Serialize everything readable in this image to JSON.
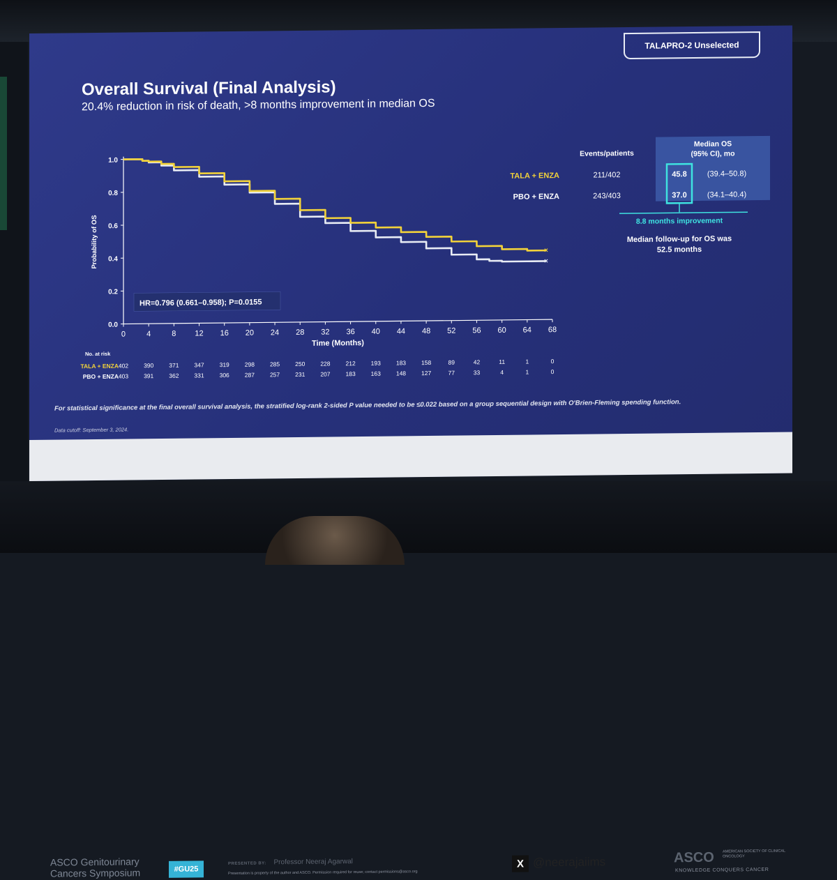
{
  "slide": {
    "tag": "TALAPRO-2 Unselected",
    "title": "Overall Survival (Final Analysis)",
    "subtitle": "20.4% reduction in risk of death, >8 months improvement in median OS",
    "footnote": "For statistical significance at the final overall survival analysis, the stratified log-rank 2-sided P value needed to be ≤0.022 based on a group sequential design with O'Brien-Fleming spending function.",
    "data_cutoff": "Data cutoff: September 3, 2024."
  },
  "chart_data": {
    "type": "line",
    "title": "",
    "xlabel": "Time (Months)",
    "ylabel": "Probability of OS",
    "xlim": [
      0,
      68
    ],
    "ylim": [
      0,
      1.0
    ],
    "x_ticks": [
      0,
      4,
      8,
      12,
      16,
      20,
      24,
      28,
      32,
      36,
      40,
      44,
      48,
      52,
      56,
      60,
      64,
      68
    ],
    "y_ticks": [
      "0.0",
      "0.2",
      "0.4",
      "0.6",
      "0.8",
      "1.0"
    ],
    "grid": false,
    "hr_label": "HR=0.796 (0.661–0.958); P=0.0155",
    "series": [
      {
        "name": "TALA + ENZA",
        "color": "#f2d23a",
        "x": [
          0,
          3,
          4,
          6,
          8,
          12,
          16,
          20,
          24,
          28,
          32,
          36,
          40,
          44,
          48,
          52,
          56,
          60,
          64,
          67
        ],
        "y": [
          1.0,
          0.99,
          0.985,
          0.97,
          0.95,
          0.91,
          0.86,
          0.8,
          0.75,
          0.68,
          0.63,
          0.6,
          0.57,
          0.54,
          0.51,
          0.48,
          0.45,
          0.43,
          0.42,
          0.42
        ]
      },
      {
        "name": "PBO + ENZA",
        "color": "#e8ecf4",
        "x": [
          0,
          3,
          4,
          6,
          8,
          12,
          16,
          20,
          24,
          28,
          32,
          36,
          40,
          44,
          48,
          52,
          56,
          58,
          60,
          64,
          67
        ],
        "y": [
          1.0,
          0.99,
          0.98,
          0.96,
          0.93,
          0.89,
          0.84,
          0.79,
          0.72,
          0.64,
          0.6,
          0.55,
          0.51,
          0.48,
          0.44,
          0.4,
          0.37,
          0.36,
          0.355,
          0.355,
          0.355
        ]
      }
    ],
    "risk_table": {
      "header": "No. at risk",
      "rows": [
        {
          "label": "TALA + ENZA",
          "values": [
            "402",
            "390",
            "371",
            "347",
            "319",
            "298",
            "285",
            "250",
            "228",
            "212",
            "193",
            "183",
            "158",
            "89",
            "42",
            "11",
            "1",
            "0"
          ]
        },
        {
          "label": "PBO + ENZA",
          "values": [
            "403",
            "391",
            "362",
            "331",
            "306",
            "287",
            "257",
            "231",
            "207",
            "183",
            "163",
            "148",
            "127",
            "77",
            "33",
            "4",
            "1",
            "0"
          ]
        }
      ]
    },
    "summary_table": {
      "col_events": "Events/patients",
      "col_median_line1": "Median OS",
      "col_median_line2": "(95% CI), mo",
      "rows": [
        {
          "label": "TALA + ENZA",
          "events": "211/402",
          "median": "45.8",
          "ci": "(39.4–50.8)"
        },
        {
          "label": "PBO + ENZA",
          "events": "243/403",
          "median": "37.0",
          "ci": "(34.1–40.4)"
        }
      ],
      "improvement": "8.8 months improvement",
      "followup_line1": "Median follow-up for OS was",
      "followup_line2": "52.5 months"
    }
  },
  "footer": {
    "meeting_line1": "ASCO Genitourinary",
    "meeting_line2": "Cancers Symposium",
    "hashtag": "#GU25",
    "presented_by_label": "PRESENTED BY:",
    "presenter": "Professor Neeraj Agarwal",
    "notice": "Presentation is property of the author and ASCO. Permission required for reuse; contact permissions@asco.org",
    "x_glyph": "X",
    "handle": "@neerajaiims",
    "org": "ASCO",
    "org_full": "AMERICAN SOCIETY OF CLINICAL ONCOLOGY",
    "org_tagline": "KNOWLEDGE CONQUERS CANCER"
  }
}
